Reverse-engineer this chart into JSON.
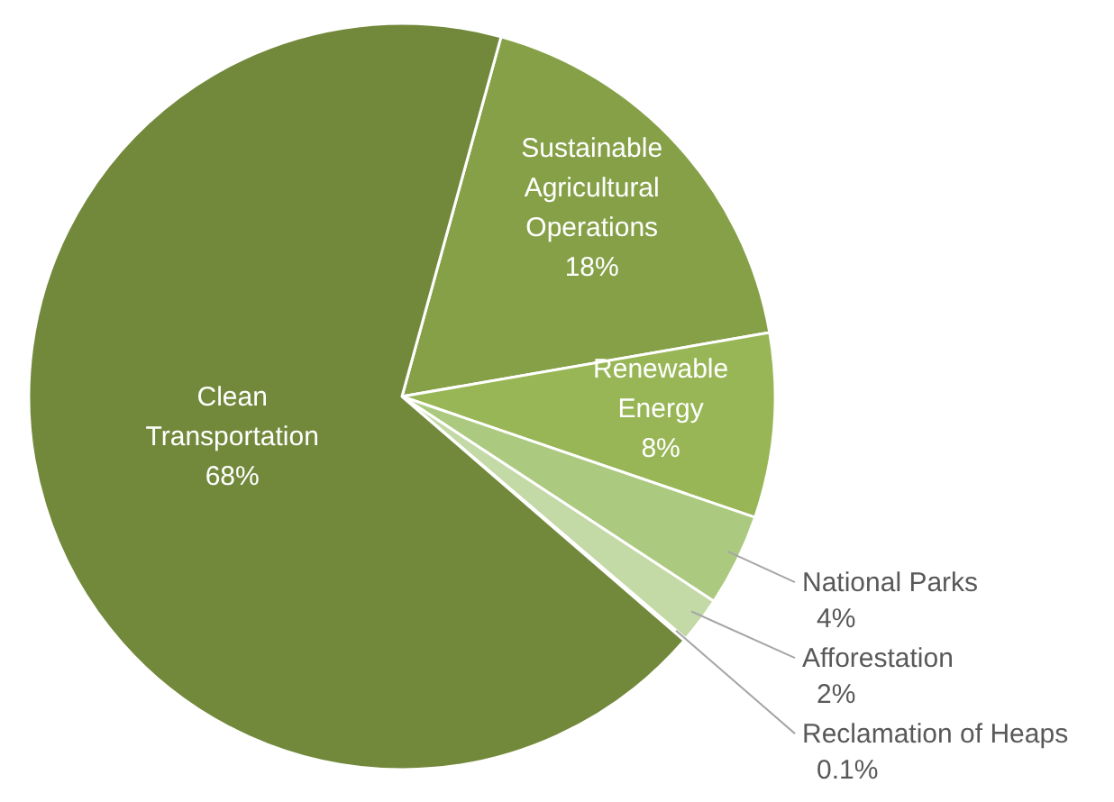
{
  "chart_data": {
    "type": "pie",
    "categories": [
      "Sustainable Agricultural Operations",
      "Renewable Energy",
      "National Parks",
      "Afforestation",
      "Reclamation of Heaps",
      "Clean Transportation"
    ],
    "values": [
      18,
      8,
      4,
      2,
      0.1,
      68
    ],
    "value_labels": [
      "18%",
      "8%",
      "4%",
      "2%",
      "0.1%",
      "68%"
    ],
    "colors": [
      "#86a048",
      "#98b656",
      "#abc97f",
      "#c3d9a6",
      "#d6e6c2",
      "#72893c"
    ]
  }
}
